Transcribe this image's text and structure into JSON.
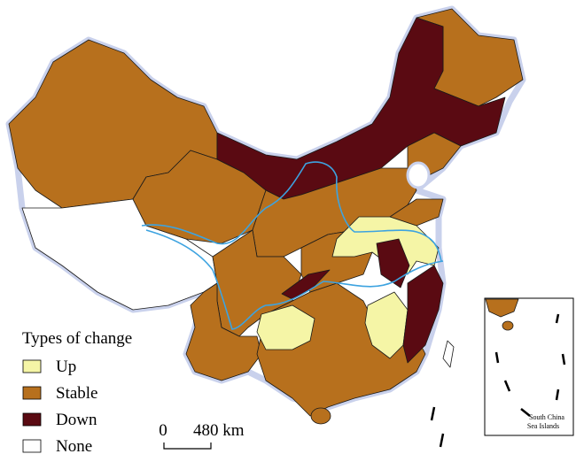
{
  "legend": {
    "title": "Types of change",
    "items": [
      {
        "label": "Up",
        "color": "#f5f5a6"
      },
      {
        "label": "Stable",
        "color": "#b7701d"
      },
      {
        "label": "Down",
        "color": "#5a0a12"
      },
      {
        "label": "None",
        "color": "#ffffff"
      }
    ]
  },
  "scale_bar": {
    "start": "0",
    "end": "480 km"
  },
  "inset": {
    "label_lines": [
      "South China",
      "Sea Islands"
    ]
  }
}
